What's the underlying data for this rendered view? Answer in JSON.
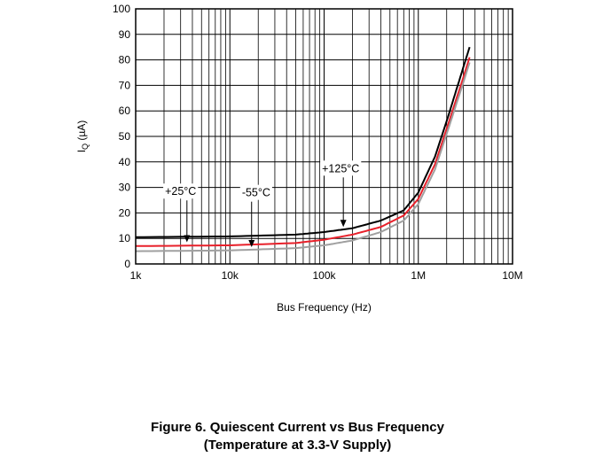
{
  "chart_data": {
    "type": "line",
    "xlabel": "Bus Frequency (Hz)",
    "ylabel": "I",
    "ylabel_sub": "Q",
    "ylabel_unit": " (µA)",
    "xscale": "log",
    "xlim": [
      1000,
      10000000
    ],
    "ylim": [
      0,
      100
    ],
    "grid": true,
    "x_ticks": [
      1000,
      10000,
      100000,
      1000000,
      10000000
    ],
    "x_tick_labels": [
      "1k",
      "10k",
      "100k",
      "1M",
      "10M"
    ],
    "y_ticks": [
      0,
      10,
      20,
      30,
      40,
      50,
      60,
      70,
      80,
      90,
      100
    ],
    "y_tick_labels": [
      "0",
      "10",
      "20",
      "30",
      "40",
      "50",
      "60",
      "70",
      "80",
      "90",
      "100"
    ],
    "series": [
      {
        "name": "+125°C",
        "color": "#000000",
        "x": [
          1000,
          10000,
          50000,
          100000,
          200000,
          400000,
          700000,
          1000000,
          1500000,
          2000000,
          3000000,
          3500000
        ],
        "y": [
          10.5,
          10.8,
          11.5,
          12.5,
          14,
          17,
          21,
          28,
          42,
          56,
          77,
          85
        ]
      },
      {
        "name": "+25°C",
        "color": "#e8202a",
        "x": [
          1000,
          10000,
          50000,
          100000,
          200000,
          400000,
          700000,
          1000000,
          1500000,
          2000000,
          3000000,
          3500000
        ],
        "y": [
          7,
          7.3,
          8.2,
          9.5,
          11.5,
          14.5,
          19,
          25.5,
          39,
          53,
          73,
          81
        ]
      },
      {
        "name": "-55°C",
        "color": "#a0a0a0",
        "x": [
          1000,
          10000,
          50000,
          100000,
          200000,
          400000,
          700000,
          1000000,
          1500000,
          2000000,
          3000000,
          3500000
        ],
        "y": [
          5,
          5.3,
          6.2,
          7.3,
          9.2,
          12.5,
          17,
          23.5,
          37,
          51,
          71,
          79
        ]
      }
    ],
    "annotations": [
      {
        "text": "+125°C",
        "tx": 150000,
        "ty": 36,
        "ax": 160000,
        "ay": 14.5,
        "box": true
      },
      {
        "text": "+25°C",
        "tx": 3000,
        "ty": 27,
        "ax": 3500,
        "ay": 8.5,
        "box": true
      },
      {
        "text": "-55°C",
        "tx": 19000,
        "ty": 26.5,
        "ax": 17000,
        "ay": 6.6,
        "box": true
      }
    ]
  },
  "caption": {
    "line1": "Figure 6. Quiescent Current vs Bus Frequency",
    "line2": "(Temperature at 3.3-V Supply)"
  }
}
